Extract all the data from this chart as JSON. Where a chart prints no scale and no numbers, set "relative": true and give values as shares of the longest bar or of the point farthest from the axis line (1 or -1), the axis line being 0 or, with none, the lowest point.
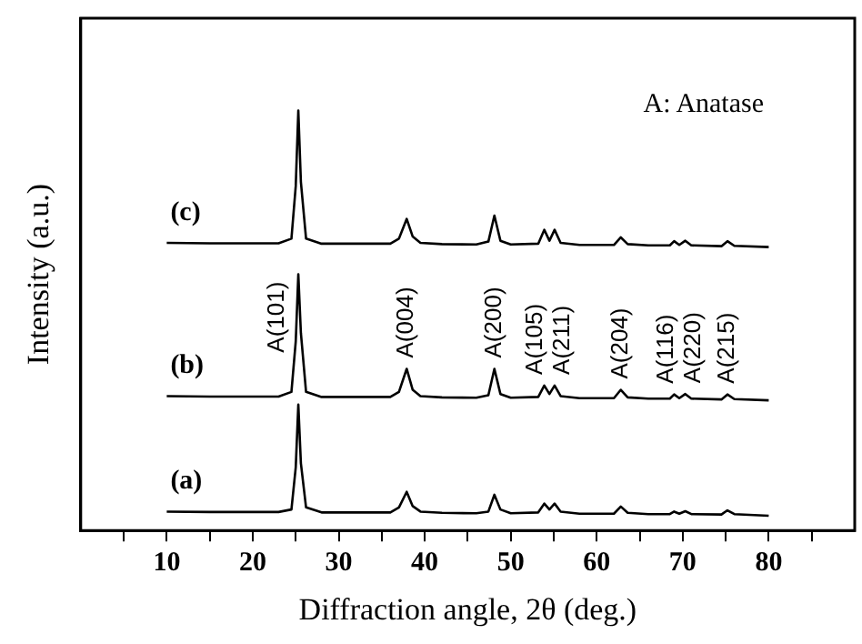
{
  "chart_data": {
    "type": "line",
    "relative": true,
    "xlabel": "Diffraction angle, 2θ (deg.)",
    "ylabel": "Intensity (a.u.)",
    "x": [
      10,
      15,
      20,
      23,
      24.5,
      25,
      25.3,
      25.6,
      26.2,
      28,
      32,
      36,
      37,
      37.9,
      38.6,
      39.5,
      42,
      46,
      47.4,
      48.1,
      48.8,
      50,
      53.2,
      53.9,
      54.5,
      55.1,
      55.8,
      58,
      62,
      62.8,
      63.6,
      66,
      68.5,
      69,
      69.6,
      70.3,
      71,
      74.5,
      75.2,
      76,
      80
    ],
    "xlim": [
      0,
      90
    ],
    "xticks": [
      {
        "value": 5,
        "label": null
      },
      10,
      {
        "value": 15,
        "label": null
      },
      20,
      {
        "value": 25,
        "label": null
      },
      30,
      {
        "value": 35,
        "label": null
      },
      40,
      {
        "value": 45,
        "label": null
      },
      50,
      {
        "value": 55,
        "label": null
      },
      60,
      {
        "value": 65,
        "label": null
      },
      70,
      {
        "value": 75,
        "label": null
      },
      80,
      {
        "value": 85,
        "label": null
      }
    ],
    "tick_labels": "x",
    "grid": false,
    "legend": false,
    "marker": "none",
    "line_style": "solid",
    "series": [
      {
        "name": "(a)",
        "color": "#000000",
        "values": [
          0.045,
          0.044,
          0.044,
          0.044,
          0.05,
          0.15,
          0.3,
          0.16,
          0.055,
          0.043,
          0.043,
          0.043,
          0.055,
          0.092,
          0.058,
          0.045,
          0.042,
          0.041,
          0.045,
          0.085,
          0.05,
          0.041,
          0.043,
          0.064,
          0.05,
          0.064,
          0.045,
          0.04,
          0.04,
          0.057,
          0.042,
          0.039,
          0.039,
          0.045,
          0.04,
          0.046,
          0.039,
          0.038,
          0.048,
          0.039,
          0.035
        ]
      },
      {
        "name": "(b)",
        "color": "#000000",
        "values": [
          0.32,
          0.319,
          0.319,
          0.319,
          0.33,
          0.45,
          0.61,
          0.47,
          0.33,
          0.318,
          0.318,
          0.318,
          0.33,
          0.385,
          0.335,
          0.32,
          0.317,
          0.316,
          0.322,
          0.385,
          0.325,
          0.316,
          0.318,
          0.345,
          0.325,
          0.345,
          0.32,
          0.315,
          0.315,
          0.335,
          0.317,
          0.314,
          0.314,
          0.324,
          0.315,
          0.325,
          0.314,
          0.312,
          0.324,
          0.313,
          0.31
        ]
      },
      {
        "name": "(c)",
        "color": "#000000",
        "values": [
          0.685,
          0.684,
          0.684,
          0.684,
          0.695,
          0.82,
          1.0,
          0.83,
          0.695,
          0.683,
          0.683,
          0.683,
          0.695,
          0.742,
          0.7,
          0.685,
          0.682,
          0.681,
          0.688,
          0.75,
          0.69,
          0.681,
          0.683,
          0.716,
          0.69,
          0.716,
          0.685,
          0.68,
          0.68,
          0.698,
          0.682,
          0.679,
          0.679,
          0.689,
          0.68,
          0.69,
          0.679,
          0.677,
          0.689,
          0.678,
          0.675
        ]
      }
    ],
    "annotations": [
      "A: Anatase",
      {
        "text": "A(101)",
        "x": 25.3,
        "y": 0.61
      },
      {
        "text": "A(004)",
        "x": 37.9,
        "y": 0.385
      },
      {
        "text": "A(200)",
        "x": 48.1,
        "y": 0.385
      },
      {
        "text": "A(105)",
        "x": 53.9,
        "y": 0.345
      },
      {
        "text": "A(211)",
        "x": 55.1,
        "y": 0.345
      },
      {
        "text": "A(204)",
        "x": 62.8,
        "y": 0.335
      },
      {
        "text": "A(116)",
        "x": 69,
        "y": 0.324
      },
      {
        "text": "A(220)",
        "x": 70.3,
        "y": 0.325
      },
      {
        "text": "A(215)",
        "x": 75.2,
        "y": 0.324
      }
    ]
  }
}
